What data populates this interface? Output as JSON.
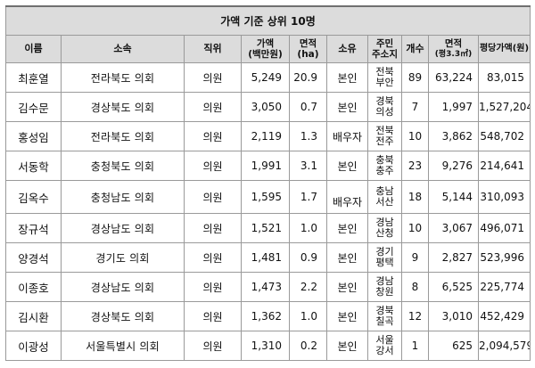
{
  "title": "가액 기준 상위 10명",
  "headers": {
    "name": "이름",
    "org": "소속",
    "position": "직위",
    "value_line1": "가액",
    "value_line2": "(백만원)",
    "area_line1": "면적",
    "area_line2": "(ha)",
    "owner": "소유",
    "addr_line1": "주민",
    "addr_line2": "주소지",
    "count": "개수",
    "pyeong_line1": "면적",
    "pyeong_line2": "(평3.3㎡)",
    "price_per": "평당가액(원)"
  },
  "rows": [
    {
      "name": "최훈열",
      "org": "전라북도 의회",
      "position": "의원",
      "value": "5,249",
      "area": "20.9",
      "owner": "본인",
      "addr1": "전북",
      "addr2": "부안",
      "count": "89",
      "pyeong": "63,224",
      "price": "83,015"
    },
    {
      "name": "김수문",
      "org": "경상북도 의회",
      "position": "의원",
      "value": "3,050",
      "area": "0.7",
      "owner": "본인",
      "addr1": "경북",
      "addr2": "의성",
      "count": "7",
      "pyeong": "1,997",
      "price": "1,527,204"
    },
    {
      "name": "홍성임",
      "org": "전라북도 의회",
      "position": "의원",
      "value": "2,119",
      "area": "1.3",
      "owner": "배우자",
      "addr1": "전북",
      "addr2": "전주",
      "count": "10",
      "pyeong": "3,862",
      "price": "548,702"
    },
    {
      "name": "서동학",
      "org": "충청북도 의회",
      "position": "의원",
      "value": "1,991",
      "area": "3.1",
      "owner": "본인",
      "addr1": "충북",
      "addr2": "충주",
      "count": "23",
      "pyeong": "9,276",
      "price": "214,641"
    },
    {
      "name": "김옥수",
      "org": "충청남도 의회",
      "position": "의원",
      "value": "1,595",
      "area": "1.7",
      "owner": "배우자",
      "addr1": "충남",
      "addr2": "서산",
      "count": "18",
      "pyeong": "5,144",
      "price": "310,093"
    },
    {
      "name": "장규석",
      "org": "경상남도 의회",
      "position": "의원",
      "value": "1,521",
      "area": "1.0",
      "owner": "본인",
      "addr1": "경남",
      "addr2": "산청",
      "count": "10",
      "pyeong": "3,067",
      "price": "496,071"
    },
    {
      "name": "양경석",
      "org": "경기도 의회",
      "position": "의원",
      "value": "1,481",
      "area": "0.9",
      "owner": "본인",
      "addr1": "경기",
      "addr2": "평택",
      "count": "9",
      "pyeong": "2,827",
      "price": "523,996"
    },
    {
      "name": "이종호",
      "org": "경상남도 의회",
      "position": "의원",
      "value": "1,473",
      "area": "2.2",
      "owner": "본인",
      "addr1": "경남",
      "addr2": "창원",
      "count": "8",
      "pyeong": "6,525",
      "price": "225,774"
    },
    {
      "name": "김시환",
      "org": "경상북도 의회",
      "position": "의원",
      "value": "1,362",
      "area": "1.0",
      "owner": "본인",
      "addr1": "경북",
      "addr2": "칠곡",
      "count": "12",
      "pyeong": "3,010",
      "price": "452,429"
    },
    {
      "name": "이광성",
      "org": "서울특별시 의회",
      "position": "의원",
      "value": "1,310",
      "area": "0.2",
      "owner": "본인",
      "addr1": "서울",
      "addr2": "강서",
      "count": "1",
      "pyeong": "625",
      "price": "2,094,579"
    }
  ]
}
